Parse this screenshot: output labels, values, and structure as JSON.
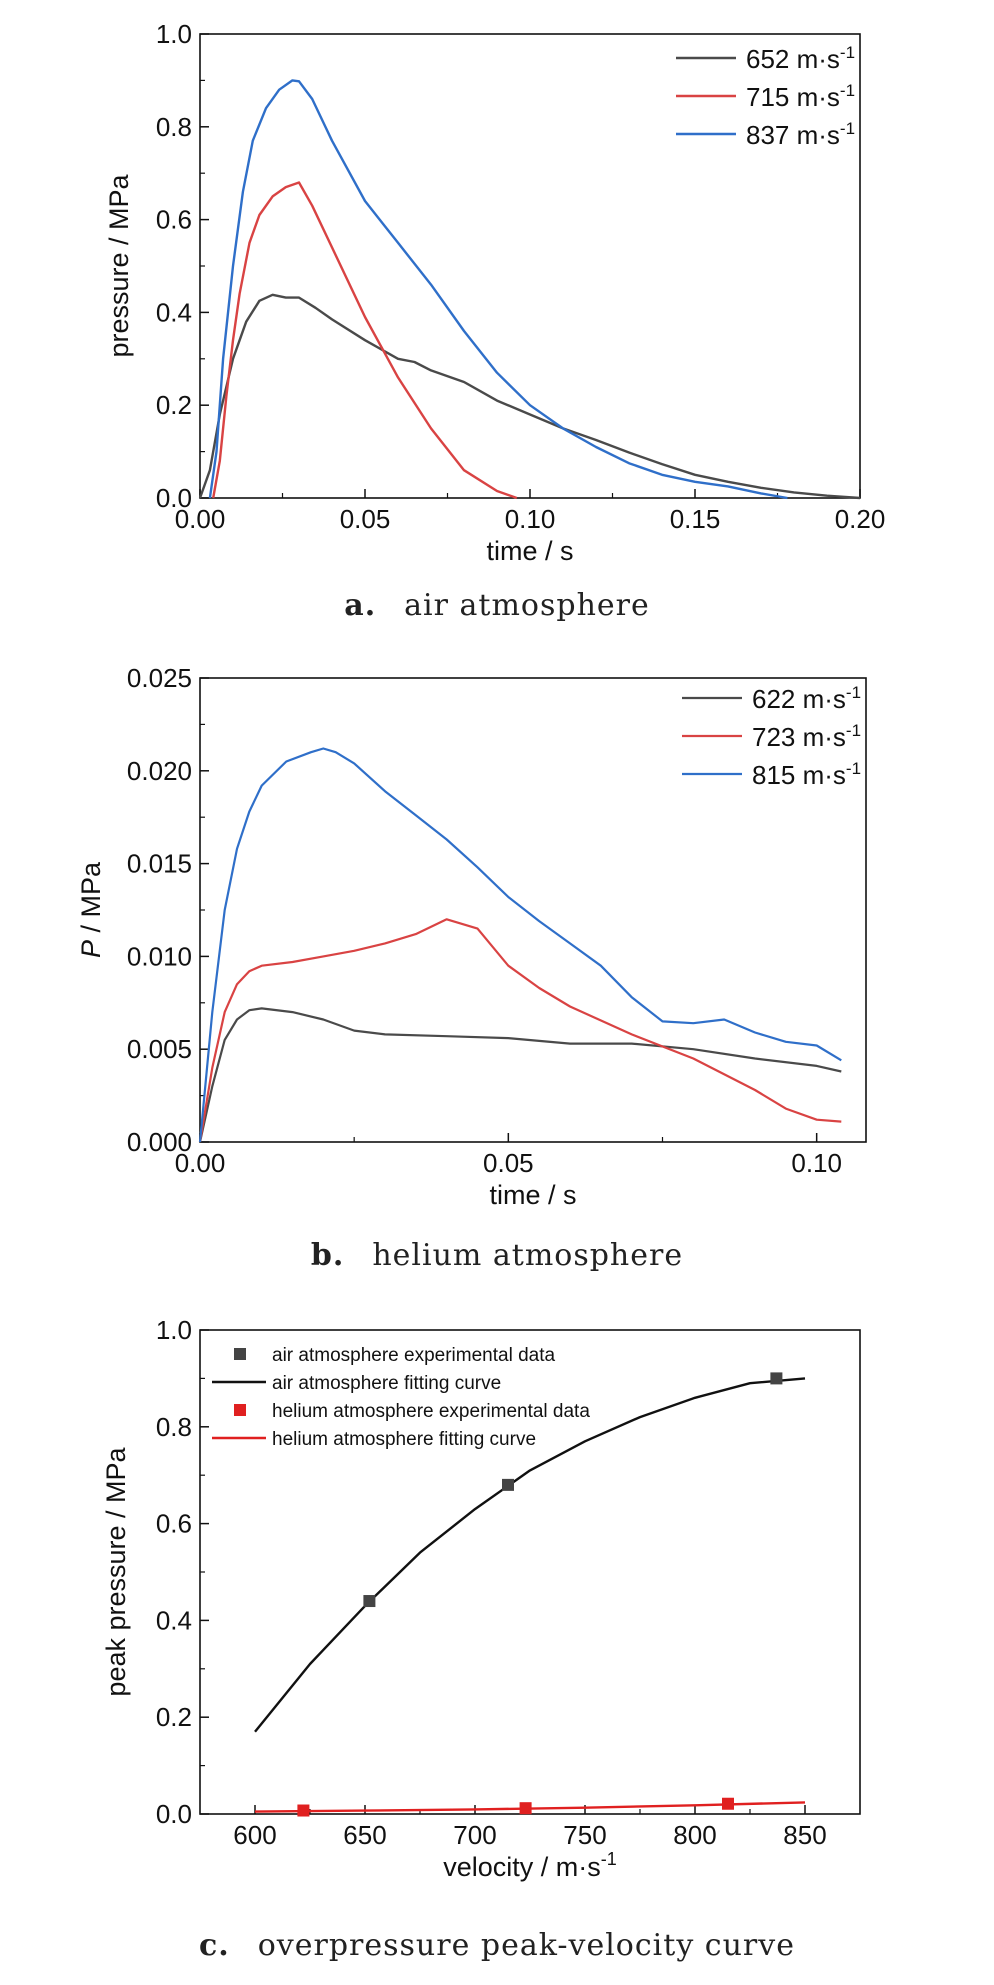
{
  "captions": [
    {
      "tag": "a.",
      "text": "air atmosphere"
    },
    {
      "tag": "b.",
      "text": "helium atmosphere"
    },
    {
      "tag": "c.",
      "text": "overpressure peak-velocity curve"
    }
  ],
  "chart_data": [
    {
      "type": "line",
      "xlabel": "time / s",
      "ylabel": "pressure / MPa",
      "xlim": [
        0,
        0.2
      ],
      "ylim": [
        0,
        1.0
      ],
      "xticks": [
        "0.00",
        "0.05",
        "0.10",
        "0.15",
        "0.20"
      ],
      "yticks": [
        "0.0",
        "0.2",
        "0.4",
        "0.6",
        "0.8",
        "1.0"
      ],
      "legend_position": "top-right",
      "series": [
        {
          "name": "652 m·s⁻¹",
          "color": "#4a4a4a",
          "x": [
            0.0,
            0.003,
            0.006,
            0.01,
            0.014,
            0.018,
            0.022,
            0.026,
            0.03,
            0.035,
            0.04,
            0.05,
            0.06,
            0.065,
            0.07,
            0.08,
            0.09,
            0.1,
            0.11,
            0.12,
            0.13,
            0.14,
            0.15,
            0.16,
            0.17,
            0.18,
            0.19,
            0.2
          ],
          "y": [
            0.0,
            0.06,
            0.18,
            0.3,
            0.38,
            0.425,
            0.438,
            0.432,
            0.432,
            0.41,
            0.385,
            0.34,
            0.3,
            0.293,
            0.275,
            0.25,
            0.21,
            0.18,
            0.15,
            0.125,
            0.098,
            0.073,
            0.05,
            0.035,
            0.022,
            0.012,
            0.005,
            0.0
          ]
        },
        {
          "name": "715 m·s⁻¹",
          "color": "#d94343",
          "x": [
            0.004,
            0.006,
            0.008,
            0.01,
            0.012,
            0.015,
            0.018,
            0.022,
            0.026,
            0.03,
            0.034,
            0.04,
            0.05,
            0.06,
            0.07,
            0.08,
            0.09,
            0.096
          ],
          "y": [
            0.0,
            0.08,
            0.22,
            0.34,
            0.44,
            0.55,
            0.61,
            0.65,
            0.67,
            0.68,
            0.63,
            0.54,
            0.39,
            0.26,
            0.15,
            0.06,
            0.015,
            0.0
          ]
        },
        {
          "name": "837 m·s⁻¹",
          "color": "#2f6fc9",
          "x": [
            0.003,
            0.005,
            0.007,
            0.01,
            0.013,
            0.016,
            0.02,
            0.024,
            0.028,
            0.03,
            0.034,
            0.04,
            0.05,
            0.06,
            0.07,
            0.08,
            0.09,
            0.1,
            0.11,
            0.12,
            0.13,
            0.14,
            0.15,
            0.16,
            0.17,
            0.178
          ],
          "y": [
            0.0,
            0.1,
            0.3,
            0.5,
            0.66,
            0.77,
            0.84,
            0.88,
            0.9,
            0.898,
            0.86,
            0.77,
            0.64,
            0.55,
            0.46,
            0.36,
            0.27,
            0.2,
            0.15,
            0.11,
            0.075,
            0.05,
            0.035,
            0.025,
            0.01,
            0.0
          ]
        }
      ]
    },
    {
      "type": "line",
      "xlabel": "time / s",
      "ylabel_italic": "P",
      "ylabel_rest": " / MPa",
      "xlim": [
        0,
        0.108
      ],
      "ylim": [
        0,
        0.025
      ],
      "xticks": [
        "0.00",
        "0.05",
        "0.10"
      ],
      "xtick_values": [
        0,
        0.05,
        0.1
      ],
      "yticks": [
        "0.000",
        "0.005",
        "0.010",
        "0.015",
        "0.020",
        "0.025"
      ],
      "legend_position": "top-right",
      "series": [
        {
          "name": "622 m·s⁻¹",
          "color": "#4a4a4a",
          "x": [
            0.0,
            0.002,
            0.004,
            0.006,
            0.008,
            0.01,
            0.015,
            0.02,
            0.025,
            0.03,
            0.04,
            0.05,
            0.06,
            0.07,
            0.08,
            0.09,
            0.1,
            0.104
          ],
          "y": [
            0.0,
            0.003,
            0.0055,
            0.0066,
            0.0071,
            0.0072,
            0.007,
            0.0066,
            0.006,
            0.0058,
            0.0057,
            0.0056,
            0.0053,
            0.0053,
            0.005,
            0.0045,
            0.0041,
            0.0038
          ]
        },
        {
          "name": "723 m·s⁻¹",
          "color": "#d94343",
          "x": [
            0.0,
            0.002,
            0.004,
            0.006,
            0.008,
            0.01,
            0.015,
            0.02,
            0.025,
            0.03,
            0.035,
            0.04,
            0.045,
            0.05,
            0.055,
            0.06,
            0.07,
            0.08,
            0.09,
            0.095,
            0.1,
            0.104
          ],
          "y": [
            0.0,
            0.004,
            0.007,
            0.0085,
            0.0092,
            0.0095,
            0.0097,
            0.01,
            0.0103,
            0.0107,
            0.0112,
            0.012,
            0.0115,
            0.0095,
            0.0083,
            0.0073,
            0.0058,
            0.0045,
            0.0028,
            0.0018,
            0.0012,
            0.0011
          ]
        },
        {
          "name": "815 m·s⁻¹",
          "color": "#2f6fc9",
          "x": [
            0.0,
            0.002,
            0.004,
            0.006,
            0.008,
            0.01,
            0.014,
            0.018,
            0.02,
            0.022,
            0.025,
            0.03,
            0.035,
            0.04,
            0.045,
            0.05,
            0.055,
            0.06,
            0.065,
            0.07,
            0.075,
            0.08,
            0.085,
            0.09,
            0.095,
            0.1,
            0.104
          ],
          "y": [
            0.0,
            0.007,
            0.0125,
            0.0158,
            0.0178,
            0.0192,
            0.0205,
            0.021,
            0.0212,
            0.021,
            0.0204,
            0.0189,
            0.0176,
            0.0163,
            0.0148,
            0.0132,
            0.0119,
            0.0107,
            0.0095,
            0.0078,
            0.0065,
            0.0064,
            0.0066,
            0.0059,
            0.0054,
            0.0052,
            0.0044
          ]
        }
      ]
    },
    {
      "type": "scatter",
      "xlabel": "velocity / m·s",
      "xlabel_sup": "-1",
      "ylabel": "peak pressure / MPa",
      "xlim": [
        575,
        875
      ],
      "ylim": [
        0,
        1.0
      ],
      "xticks": [
        "600",
        "650",
        "700",
        "750",
        "800",
        "850"
      ],
      "xtick_values": [
        600,
        650,
        700,
        750,
        800,
        850
      ],
      "yticks": [
        "0.0",
        "0.2",
        "0.4",
        "0.6",
        "0.8",
        "1.0"
      ],
      "legend_position": "top-left",
      "legend": [
        "air atmosphere experimental data",
        "air atmosphere fitting curve",
        "helium atmosphere experimental data",
        "helium atmosphere fitting curve"
      ],
      "series": [
        {
          "kind": "points",
          "color": "#444444",
          "x": [
            652,
            715,
            837
          ],
          "y": [
            0.44,
            0.68,
            0.9
          ]
        },
        {
          "kind": "line",
          "color": "#111111",
          "x": [
            600,
            625,
            650,
            675,
            700,
            725,
            750,
            775,
            800,
            825,
            850
          ],
          "y": [
            0.17,
            0.31,
            0.43,
            0.54,
            0.63,
            0.71,
            0.77,
            0.82,
            0.86,
            0.89,
            0.9
          ]
        },
        {
          "kind": "points",
          "color": "#e02020",
          "x": [
            622,
            723,
            815
          ],
          "y": [
            0.0072,
            0.012,
            0.0212
          ]
        },
        {
          "kind": "line",
          "color": "#e02020",
          "x": [
            600,
            650,
            700,
            750,
            800,
            850
          ],
          "y": [
            0.005,
            0.007,
            0.0095,
            0.013,
            0.018,
            0.024
          ]
        }
      ]
    }
  ]
}
